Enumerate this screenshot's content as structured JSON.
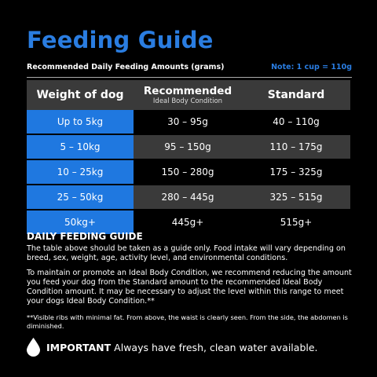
{
  "title": "Feeding Guide",
  "subtitle": "Recommended Daily Feeding Amounts (grams)",
  "note": "Note: 1 cup = 110g",
  "table": {
    "headers": {
      "weight": "Weight of dog",
      "recommended": "Recommended",
      "recommended_sub": "Ideal Body Condition",
      "standard": "Standard"
    },
    "rows": [
      {
        "weight": "Up to 5kg",
        "recommended": "30 – 95g",
        "standard": "40 – 110g"
      },
      {
        "weight": "5 – 10kg",
        "recommended": "95 – 150g",
        "standard": "110 – 175g"
      },
      {
        "weight": "10 – 25kg",
        "recommended": "150 – 280g",
        "standard": "175 – 325g"
      },
      {
        "weight": "25 – 50kg",
        "recommended": "280 – 445g",
        "standard": "325 – 515g"
      },
      {
        "weight": "50kg+",
        "recommended": "445g+",
        "standard": "515g+"
      }
    ]
  },
  "guide": {
    "heading": "DAILY FEEDING GUIDE",
    "para1": "The table above should be taken as a guide only. Food intake will vary depending on breed, sex, weight, age, activity level, and environmental conditions.",
    "para2": "To maintain or promote an Ideal Body Condition, we recommend reducing the amount you feed your dog from the Standard amount to the recommended Ideal Body Condition amount. It may be necessary to adjust the level within this range to meet your dogs Ideal Body Condition.**",
    "footnote": "**Visible ribs with minimal fat. From above, the waist is clearly seen. From the side, the abdomen is diminished."
  },
  "important": {
    "icon": "water-drop-icon",
    "label": "IMPORTANT",
    "text": "Always have fresh, clean water available."
  },
  "colors": {
    "accent": "#2a7de1",
    "cell_blue": "#1f78e0",
    "row_grey": "#3a3a3a",
    "background": "#000000"
  }
}
